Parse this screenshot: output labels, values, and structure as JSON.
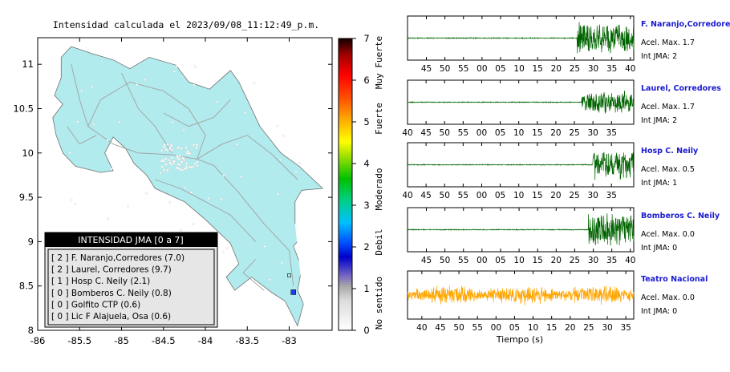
{
  "map": {
    "title": "Intensidad calculada el 2023/09/08_11:12:49_p.m.",
    "x_ticks": [
      "-86",
      "-85.5",
      "-85",
      "-84.5",
      "-84",
      "-83.5",
      "-83"
    ],
    "y_ticks": [
      "11",
      "10.5",
      "10",
      "9.5",
      "9",
      "8.5",
      "8"
    ],
    "land_color": "#b2ebed",
    "road_color": "#a0a0a0"
  },
  "colorbar": {
    "ticks": [
      "7",
      "6",
      "5",
      "4",
      "3",
      "2",
      "1",
      "0"
    ],
    "categories": [
      "Muy Fuerte",
      "Fuerte",
      "Moderado",
      "Debil",
      "No sentido"
    ]
  },
  "legend": {
    "title": "INTENSIDAD JMA [0 a 7]",
    "items": [
      {
        "text": "[ 2 ]  F. Naranjo,Corredores (7.0)"
      },
      {
        "text": "[ 2 ]  Laurel, Corredores (9.7)"
      },
      {
        "text": "[ 1 ]  Hosp C. Neily (2.1)"
      },
      {
        "text": "[ 0 ]  Bomberos C. Neily (0.8)"
      },
      {
        "text": "[ 0 ]  Golfito CTP (0.6)"
      },
      {
        "text": "[ 0 ]  Lic F Alajuela, Osa (0.6)"
      }
    ]
  },
  "traces_xlabel": "Tiempo (s)",
  "chart_data": {
    "type": "line",
    "title": "",
    "xlabel": "Tiempo (s)",
    "ylabel": "",
    "panels": [
      {
        "station": "F. Naranjo,Corredores",
        "accel": "Acel. Max. 1.7",
        "int": "Int JMA: 2",
        "ticks": [
          "45",
          "50",
          "55",
          "00",
          "05",
          "10",
          "15",
          "20",
          "25",
          "30",
          "35",
          "40"
        ],
        "onset_fraction": 0.75,
        "first_tick_offset": 0.055,
        "color": "#006400",
        "noise_amp": 0.02,
        "signal_amp": 0.9
      },
      {
        "station": "Laurel, Corredores",
        "accel": "Acel. Max. 1.7",
        "int": "Int JMA: 2",
        "ticks": [
          "40",
          "45",
          "50",
          "55",
          "00",
          "05",
          "10",
          "15",
          "20",
          "25",
          "30",
          "35"
        ],
        "onset_fraction": 0.77,
        "first_tick_offset": 0.0,
        "color": "#006400",
        "noise_amp": 0.02,
        "signal_amp": 0.6
      },
      {
        "station": "Hosp C. Neily",
        "accel": "Acel. Max. 0.5",
        "int": "Int JMA: 1",
        "ticks": [
          "40",
          "45",
          "50",
          "55",
          "00",
          "05",
          "10",
          "15",
          "20",
          "25",
          "30",
          "35"
        ],
        "onset_fraction": 0.82,
        "first_tick_offset": 0.0,
        "color": "#006400",
        "noise_amp": 0.02,
        "signal_amp": 0.8
      },
      {
        "station": "Bomberos C. Neily",
        "accel": "Acel. Max. 0.0",
        "int": "Int JMA: 0",
        "ticks": [
          "45",
          "50",
          "55",
          "00",
          "05",
          "10",
          "15",
          "20",
          "25",
          "30",
          "35",
          "40"
        ],
        "onset_fraction": 0.8,
        "first_tick_offset": 0.055,
        "color": "#006400",
        "noise_amp": 0.02,
        "signal_amp": 0.9
      },
      {
        "station": "Teatro Nacional",
        "accel": "Acel. Max. 0.0",
        "int": "Int JMA: 0",
        "ticks": [
          "40",
          "45",
          "50",
          "55",
          "00",
          "05",
          "10",
          "15",
          "20",
          "25",
          "30",
          "35"
        ],
        "onset_fraction": 0.0,
        "first_tick_offset": 0.035,
        "color": "#ffa500",
        "noise_amp": 0.35,
        "signal_amp": 0.35
      }
    ]
  }
}
